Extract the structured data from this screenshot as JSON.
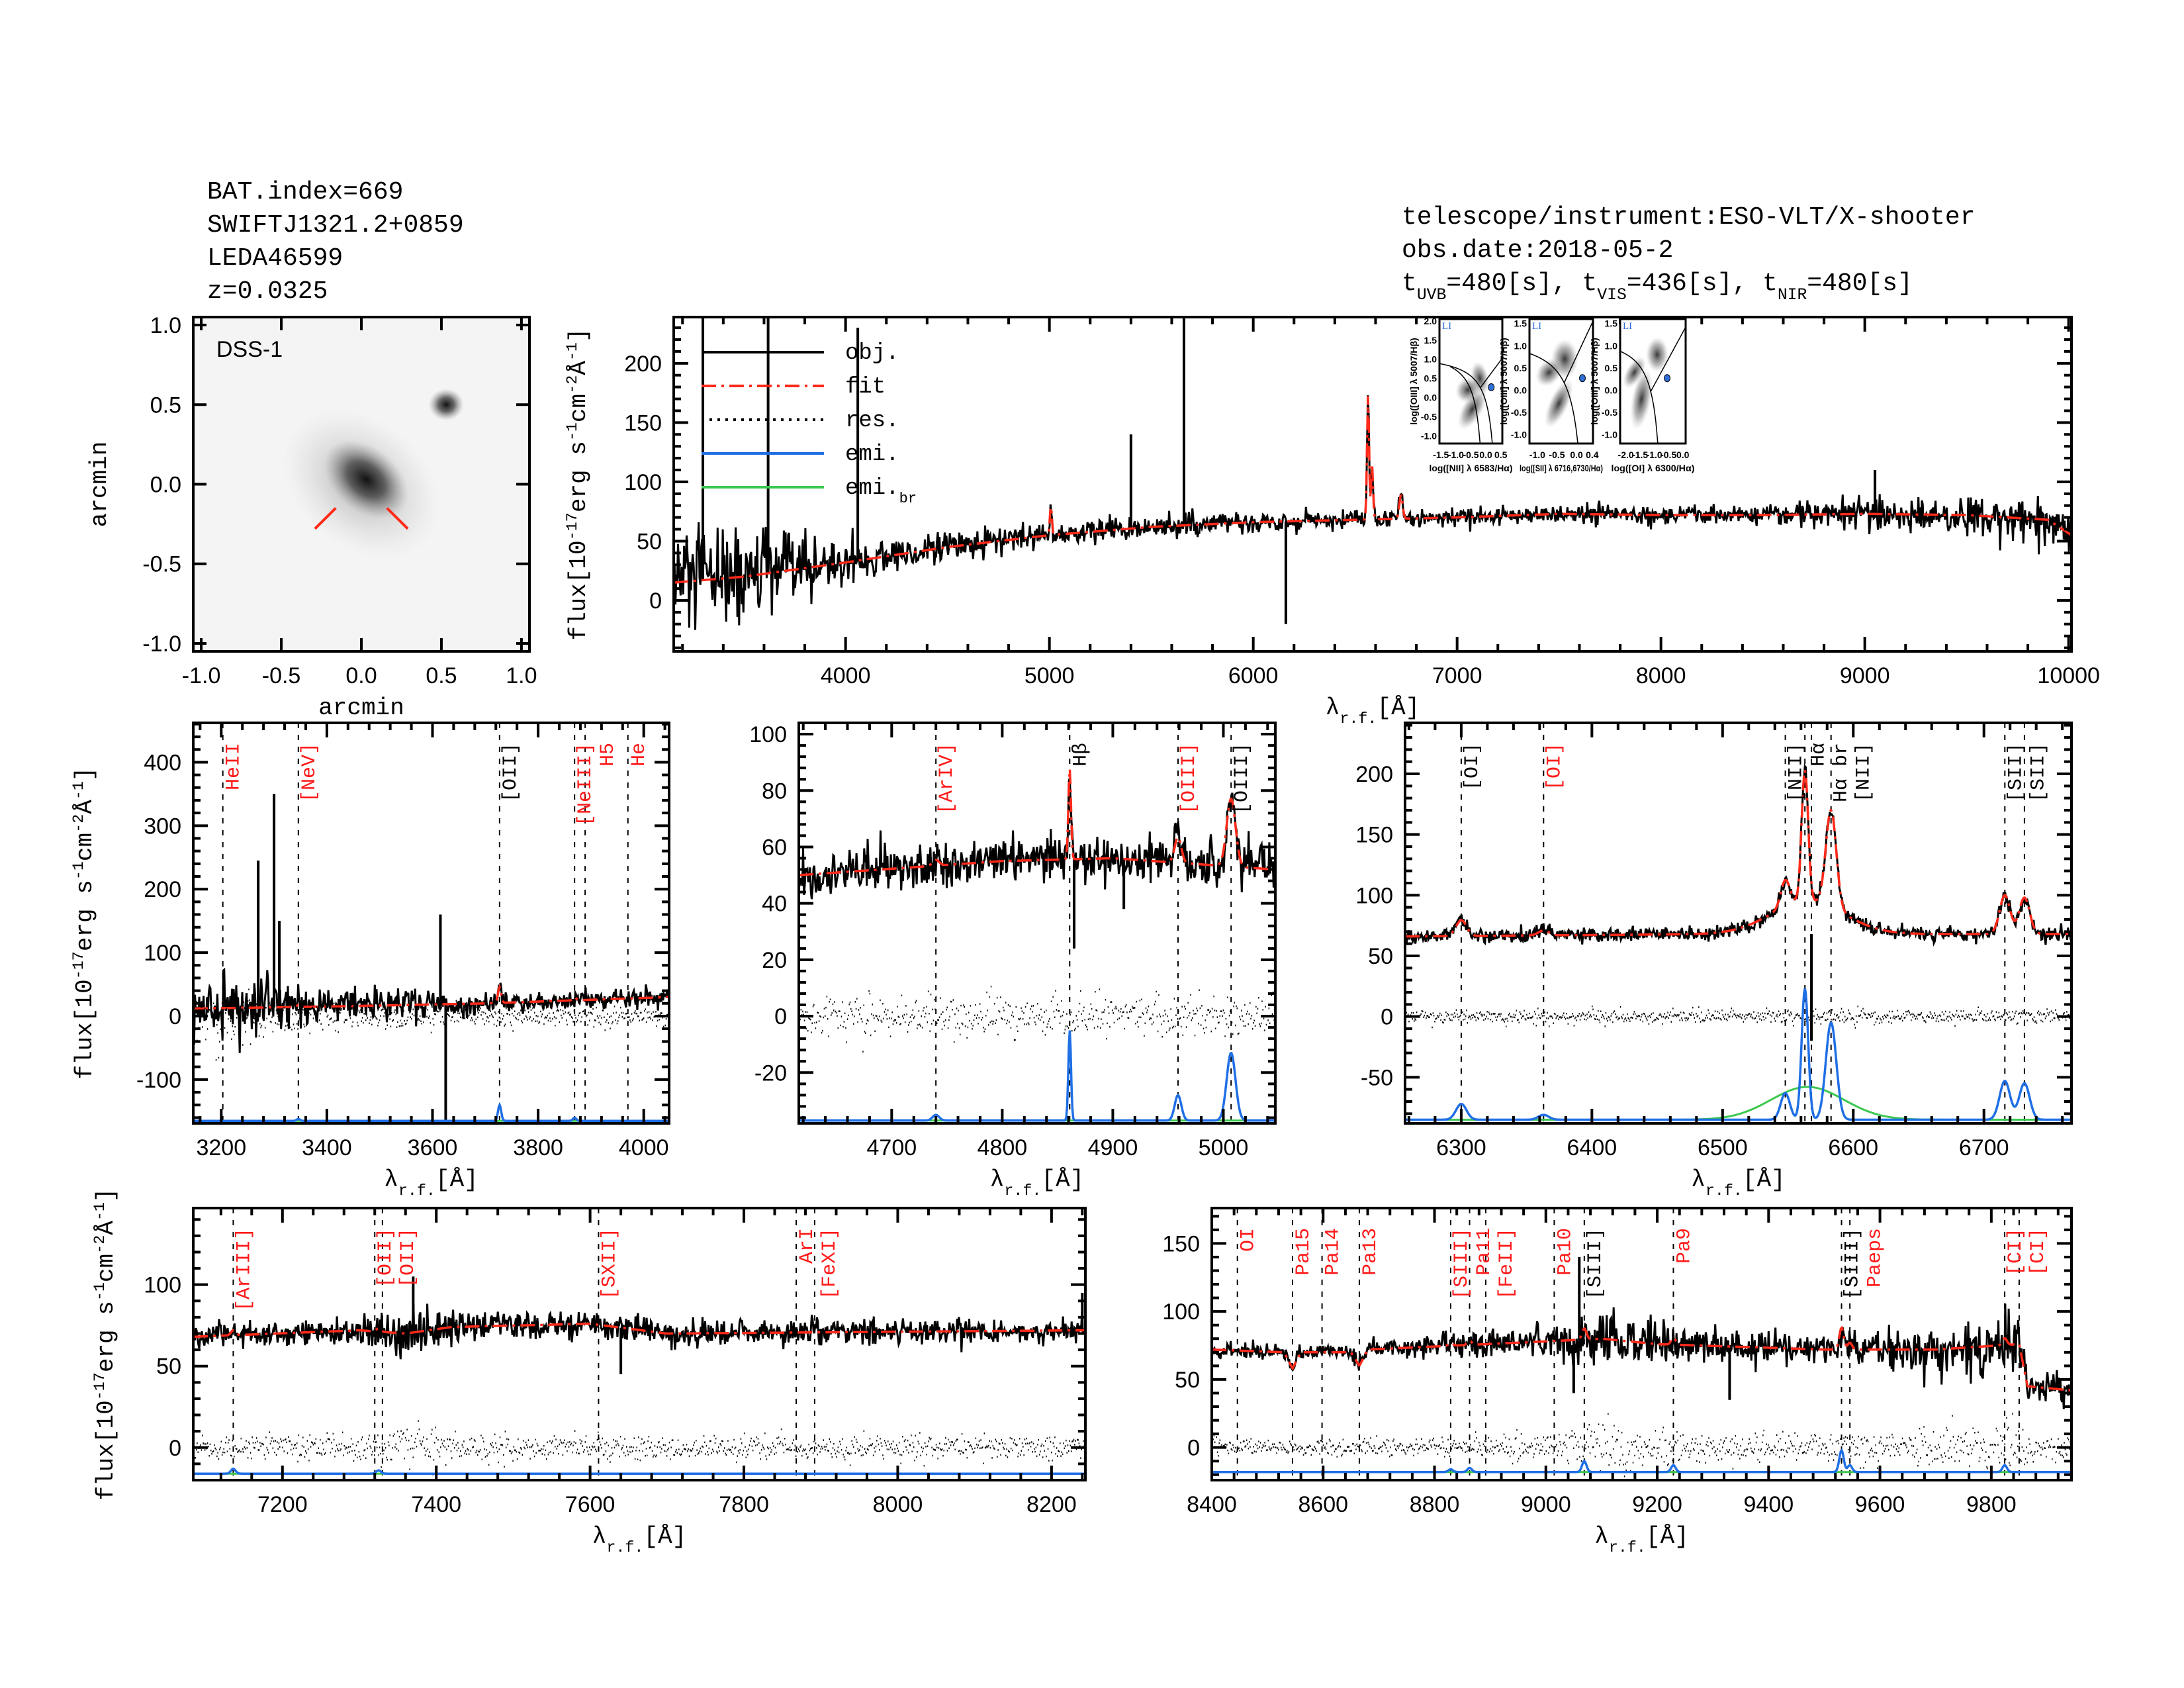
{
  "header_left": [
    "BAT.index=669",
    "SWIFTJ1321.2+0859",
    "LEDA46599",
    "z=0.0325"
  ],
  "header_right": {
    "telescope": "telescope/instrument:ESO-VLT/X-shooter",
    "obs_date": "obs.date:2018-05-2",
    "exposure": [
      {
        "t": "t"
      },
      {
        "t": "UVB",
        "sub": true
      },
      {
        "t": "=480[s], t"
      },
      {
        "t": "VIS",
        "sub": true
      },
      {
        "t": "=436[s], t"
      },
      {
        "t": "NIR",
        "sub": true
      },
      {
        "t": "=480[s]"
      }
    ]
  },
  "labels": {
    "flux": [
      {
        "t": "flux[10"
      },
      {
        "t": "-17",
        "sup": true
      },
      {
        "t": "erg s"
      },
      {
        "t": "-1",
        "sup": true
      },
      {
        "t": "cm"
      },
      {
        "t": "-2",
        "sup": true
      },
      {
        "t": "Å"
      },
      {
        "t": "-1",
        "sup": true
      },
      {
        "t": "]"
      }
    ],
    "lambda": [
      {
        "t": "λ"
      },
      {
        "t": "r.f.",
        "sub": true
      },
      {
        "t": "[Å]"
      }
    ]
  },
  "image_panel": {
    "survey_label": "DSS-1",
    "xlabel": "arcmin",
    "ylabel": "arcmin",
    "ticks": [
      "-1.0",
      "-0.5",
      "0.0",
      "0.5",
      "1.0"
    ]
  },
  "legend": [
    {
      "label": "obj.",
      "color": "#000000",
      "style": "solid"
    },
    {
      "label": "fit",
      "color": "#ff2a1a",
      "style": "dashdot"
    },
    {
      "label": "res.",
      "color": "#000000",
      "style": "dotted"
    },
    {
      "label": "emi.",
      "color": "#1f6fe5",
      "style": "solid"
    },
    {
      "label": "emi.",
      "sub": "br",
      "color": "#3cc84f",
      "style": "solid"
    }
  ],
  "bpt_insets": [
    {
      "class": "LI",
      "xlabel": "log([NII] λ 6583/Hα)",
      "ylabel": "log([OIII] λ 5007/Hβ)",
      "xlim": [
        -1.55,
        0.55
      ],
      "ylim": [
        -1.2,
        2.05
      ],
      "xticks": [
        "-1.5",
        "-1.0",
        "-0.5",
        "0.0",
        "0.5"
      ],
      "yticks": [
        "-1.0",
        "-0.5",
        "0.0",
        "0.5",
        "1.0",
        "1.5",
        "2.0"
      ],
      "point": [
        0.18,
        0.27
      ],
      "diagram": "NII"
    },
    {
      "class": "LI",
      "xlabel": "log([SII] λ 6716,6730/Hα)",
      "ylabel": "log([OIII] λ 5007/Hβ)",
      "xlim": [
        -1.2,
        0.42
      ],
      "ylim": [
        -1.2,
        1.6
      ],
      "xticks": [
        "-1.0",
        "-0.5",
        "0.0",
        "0.4"
      ],
      "yticks": [
        "-1.0",
        "-0.5",
        "0.0",
        "0.5",
        "1.0",
        "1.5"
      ],
      "point": [
        0.15,
        0.27
      ],
      "diagram": "SII"
    },
    {
      "class": "LI",
      "xlabel": "log([OI] λ 6300/Hα)",
      "ylabel": "log([OIII] λ 5007/Hβ)",
      "xlim": [
        -2.2,
        0.1
      ],
      "ylim": [
        -1.2,
        1.6
      ],
      "xticks": [
        "-2.0",
        "-1.5",
        "-1.0",
        "-0.5",
        "0.0"
      ],
      "yticks": [
        "-1.0",
        "-0.5",
        "0.0",
        "0.5",
        "1.0",
        "1.5"
      ],
      "point": [
        -0.55,
        0.27
      ],
      "diagram": "OI"
    }
  ],
  "chart_data": [
    {
      "id": "main",
      "type": "line",
      "xlim": [
        3157,
        10014
      ],
      "ylim": [
        -43,
        239
      ],
      "xticks": [
        "4000",
        "5000",
        "6000",
        "7000",
        "8000",
        "9000",
        "10000"
      ],
      "yticks": [
        "0",
        "50",
        "100",
        "150",
        "200"
      ],
      "ylabel": true,
      "xlabel": true,
      "residual": false,
      "emission_panel": false,
      "continuum": [
        [
          3157,
          15,
          28
        ],
        [
          3500,
          20,
          20
        ],
        [
          4000,
          32,
          10
        ],
        [
          4500,
          45,
          6
        ],
        [
          5000,
          55,
          5
        ],
        [
          5500,
          62,
          5
        ],
        [
          6000,
          66,
          4
        ],
        [
          6500,
          68,
          4
        ],
        [
          7000,
          70,
          4
        ],
        [
          7500,
          73,
          4
        ],
        [
          8000,
          72,
          4
        ],
        [
          8500,
          72,
          4
        ],
        [
          9000,
          73,
          7
        ],
        [
          9500,
          72,
          8
        ],
        [
          9900,
          68,
          10
        ],
        [
          10014,
          55,
          10
        ]
      ],
      "emission": [
        {
          "c": 6563,
          "a": 105,
          "w": 5
        },
        {
          "c": 6583,
          "a": 45,
          "w": 5
        },
        {
          "c": 5007,
          "a": 25,
          "w": 5
        },
        {
          "c": 6725,
          "a": 20,
          "w": 8
        }
      ],
      "spikes": [
        [
          3300,
          239
        ],
        [
          3620,
          239
        ],
        [
          4060,
          230
        ],
        [
          5400,
          140
        ],
        [
          5660,
          239
        ],
        [
          6160,
          -20
        ],
        [
          9050,
          110
        ]
      ],
      "markers": []
    },
    {
      "id": "p1",
      "type": "line",
      "xlim": [
        3147,
        4048
      ],
      "ylim": [
        -169,
        462
      ],
      "xticks": [
        "3200",
        "3400",
        "3600",
        "3800",
        "4000"
      ],
      "yticks": [
        "-100",
        "0",
        "100",
        "200",
        "300",
        "400"
      ],
      "ylabel": true,
      "xlabel": true,
      "residual": true,
      "emission_panel": true,
      "emi_base": -165,
      "continuum": [
        [
          3147,
          12,
          30
        ],
        [
          3400,
          15,
          15
        ],
        [
          3700,
          20,
          9
        ],
        [
          4048,
          30,
          7
        ]
      ],
      "emission": [
        {
          "c": 3727,
          "a": 25,
          "w": 3
        },
        {
          "c": 3869,
          "a": 5,
          "w": 3
        },
        {
          "c": 3346,
          "a": 3,
          "w": 3
        }
      ],
      "spikes": [
        [
          3270,
          245
        ],
        [
          3300,
          350
        ],
        [
          3310,
          150
        ],
        [
          3625,
          -169
        ],
        [
          3615,
          160
        ]
      ],
      "markers": [
        {
          "label": "HeII",
          "x": 3203,
          "color": "#ff1a1a"
        },
        {
          "label": "[NeV]",
          "x": 3346,
          "color": "#ff1a1a"
        },
        {
          "label": "[OII]",
          "x": 3727,
          "color": "#000000"
        },
        {
          "label": "[NeIII]",
          "x": 3869,
          "color": "#ff1a1a"
        },
        {
          "label": "H5",
          "x": 3889,
          "color": "#ff1a1a"
        },
        {
          "label": "He",
          "x": 3970,
          "color": "#ff1a1a"
        }
      ]
    },
    {
      "id": "p2",
      "type": "line",
      "xlim": [
        4616,
        5047
      ],
      "ylim": [
        -38,
        104
      ],
      "xticks": [
        "4700",
        "4800",
        "4900",
        "5000"
      ],
      "yticks": [
        "-20",
        "0",
        "20",
        "40",
        "60",
        "80",
        "100"
      ],
      "ylabel": false,
      "xlabel": true,
      "residual": true,
      "emission_panel": true,
      "emi_base": -37,
      "continuum": [
        [
          4616,
          50,
          4
        ],
        [
          4800,
          55,
          4
        ],
        [
          4900,
          56,
          4
        ],
        [
          5047,
          52,
          4
        ]
      ],
      "emission": [
        {
          "c": 4861,
          "a": 32,
          "w": 1.2
        },
        {
          "c": 4959,
          "a": 9,
          "w": 3
        },
        {
          "c": 5007,
          "a": 24,
          "w": 4
        },
        {
          "c": 4740,
          "a": 2,
          "w": 3
        }
      ],
      "spikes": [
        [
          4910,
          38
        ],
        [
          4865,
          24
        ]
      ],
      "markers": [
        {
          "label": "[ArIV]",
          "x": 4740,
          "color": "#ff1a1a"
        },
        {
          "label": "Hβ",
          "x": 4861,
          "color": "#000000"
        },
        {
          "label": "[OIII]",
          "x": 4959,
          "color": "#ff1a1a"
        },
        {
          "label": "[OIII]",
          "x": 5007,
          "color": "#000000"
        }
      ]
    },
    {
      "id": "p3",
      "type": "line",
      "xlim": [
        6257,
        6767
      ],
      "ylim": [
        -88,
        242
      ],
      "xticks": [
        "6300",
        "6400",
        "6500",
        "6600",
        "6700"
      ],
      "yticks": [
        "-50",
        "0",
        "50",
        "100",
        "150",
        "200"
      ],
      "ylabel": false,
      "xlabel": true,
      "residual": true,
      "emission_panel": true,
      "emi_base": -85,
      "continuum": [
        [
          6257,
          66,
          3
        ],
        [
          6500,
          68,
          3
        ],
        [
          6767,
          68,
          3
        ]
      ],
      "emission": [
        {
          "c": 6300,
          "a": 13,
          "w": 4
        },
        {
          "c": 6363,
          "a": 4,
          "w": 4
        },
        {
          "c": 6548,
          "a": 22,
          "w": 3.5
        },
        {
          "c": 6563,
          "a": 108,
          "w": 2.5
        },
        {
          "c": 6583,
          "a": 80,
          "w": 4
        },
        {
          "c": 6716,
          "a": 32,
          "w": 4
        },
        {
          "c": 6731,
          "a": 30,
          "w": 4
        },
        {
          "c": 6565,
          "a": 27,
          "w": 28,
          "broad": true
        }
      ],
      "spikes": [
        [
          6568,
          -20
        ]
      ],
      "markers": [
        {
          "label": "[OI]",
          "x": 6300,
          "color": "#000000"
        },
        {
          "label": "[OI]",
          "x": 6363,
          "color": "#ff1a1a"
        },
        {
          "label": "[NII]",
          "x": 6548,
          "color": "#000000"
        },
        {
          "label": "Hα",
          "x": 6563,
          "color": "#000000"
        },
        {
          "label": "Hα br",
          "x": 6568,
          "color": "#000000"
        },
        {
          "label": "[NII]",
          "x": 6583,
          "color": "#000000"
        },
        {
          "label": "[SII]",
          "x": 6716,
          "color": "#000000"
        },
        {
          "label": "[SII]",
          "x": 6731,
          "color": "#000000"
        }
      ]
    },
    {
      "id": "b1",
      "type": "line",
      "xlim": [
        7084,
        8244
      ],
      "ylim": [
        -20,
        147
      ],
      "xticks": [
        "7200",
        "7400",
        "7600",
        "7800",
        "8000",
        "8200"
      ],
      "yticks": [
        "0",
        "50",
        "100"
      ],
      "ylabel": true,
      "xlabel": true,
      "residual": true,
      "emission_panel": true,
      "emi_base": -16,
      "continuum": [
        [
          7084,
          68,
          4
        ],
        [
          7300,
          72,
          4
        ],
        [
          7360,
          70,
          9
        ],
        [
          7420,
          74,
          5
        ],
        [
          7600,
          76,
          4
        ],
        [
          7700,
          70,
          4
        ],
        [
          8244,
          72,
          4
        ]
      ],
      "emission": [
        {
          "c": 7136,
          "a": 3,
          "w": 3
        },
        {
          "c": 7325,
          "a": 2,
          "w": 3
        }
      ],
      "spikes": [
        [
          7370,
          105
        ],
        [
          7640,
          45
        ],
        [
          8240,
          95
        ]
      ],
      "markers": [
        {
          "label": "[ArIII]",
          "x": 7136,
          "color": "#ff1a1a"
        },
        {
          "label": "[OII]",
          "x": 7320,
          "color": "#ff1a1a"
        },
        {
          "label": "[OII]",
          "x": 7330,
          "color": "#ff1a1a"
        },
        {
          "label": "[SXII]",
          "x": 7611,
          "color": "#ff1a1a"
        },
        {
          "label": "ArI",
          "x": 7868,
          "color": "#ff1a1a"
        },
        {
          "label": "[FeXI]",
          "x": 7892,
          "color": "#ff1a1a"
        }
      ]
    },
    {
      "id": "b2",
      "type": "line",
      "xlim": [
        8400,
        9944
      ],
      "ylim": [
        -24,
        176
      ],
      "xticks": [
        "8400",
        "8600",
        "8800",
        "9000",
        "9200",
        "9400",
        "9600",
        "9800"
      ],
      "yticks": [
        "0",
        "50",
        "100",
        "150"
      ],
      "ylabel": false,
      "xlabel": true,
      "residual": true,
      "emission_panel": true,
      "emi_base": -18,
      "continuum": [
        [
          8400,
          72,
          3
        ],
        [
          8530,
          70,
          3
        ],
        [
          8545,
          58,
          3
        ],
        [
          8560,
          70,
          3
        ],
        [
          8650,
          70,
          3
        ],
        [
          8665,
          60,
          3
        ],
        [
          8680,
          72,
          3
        ],
        [
          9000,
          78,
          6
        ],
        [
          9100,
          80,
          12
        ],
        [
          9200,
          76,
          7
        ],
        [
          9500,
          72,
          5
        ],
        [
          9700,
          72,
          9
        ],
        [
          9850,
          76,
          12
        ],
        [
          9865,
          45,
          5
        ],
        [
          9944,
          42,
          5
        ]
      ],
      "emission": [
        {
          "c": 9069,
          "a": 8,
          "w": 4
        },
        {
          "c": 9229,
          "a": 5,
          "w": 4
        },
        {
          "c": 9531,
          "a": 16,
          "w": 4
        },
        {
          "c": 9546,
          "a": 5,
          "w": 4
        },
        {
          "c": 9824,
          "a": 5,
          "w": 4
        },
        {
          "c": 8829,
          "a": 2,
          "w": 4
        },
        {
          "c": 8863,
          "a": 3,
          "w": 4
        }
      ],
      "spikes": [
        [
          9050,
          40
        ],
        [
          9060,
          140
        ],
        [
          9330,
          35
        ]
      ],
      "markers": [
        {
          "label": "OI",
          "x": 8446,
          "color": "#ff1a1a"
        },
        {
          "label": "Pa15",
          "x": 8545,
          "color": "#ff1a1a"
        },
        {
          "label": "Pa14",
          "x": 8598,
          "color": "#ff1a1a"
        },
        {
          "label": "Pa13",
          "x": 8665,
          "color": "#ff1a1a"
        },
        {
          "label": "[SIII]",
          "x": 8829,
          "color": "#ff1a1a"
        },
        {
          "label": "Pa11",
          "x": 8863,
          "color": "#ff1a1a"
        },
        {
          "label": "[FeII]",
          "x": 8892,
          "color": "#ff1a1a"
        },
        {
          "label": "Pa10",
          "x": 9015,
          "color": "#ff1a1a"
        },
        {
          "label": "[SIII]",
          "x": 9069,
          "color": "#000000"
        },
        {
          "label": "Pa9",
          "x": 9229,
          "color": "#ff1a1a"
        },
        {
          "label": "[SIII]",
          "x": 9531,
          "color": "#000000"
        },
        {
          "label": "Paeps",
          "x": 9546,
          "color": "#ff1a1a"
        },
        {
          "label": "[CI]",
          "x": 9824,
          "color": "#ff1a1a"
        },
        {
          "label": "[CI]",
          "x": 9850,
          "color": "#ff1a1a"
        }
      ]
    }
  ]
}
